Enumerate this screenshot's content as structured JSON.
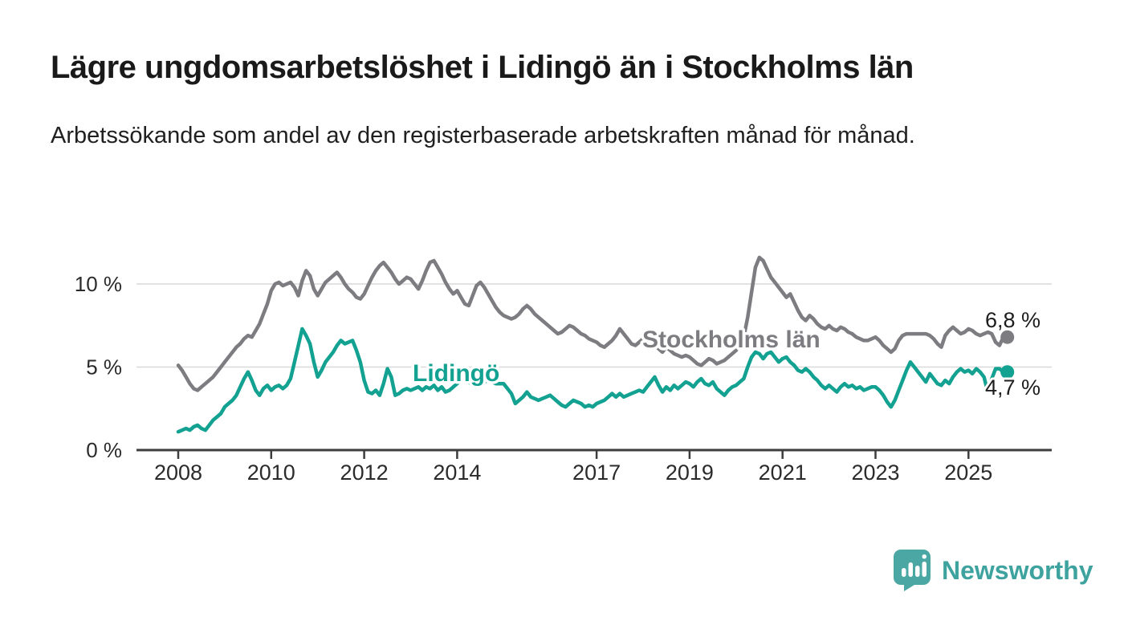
{
  "header": {
    "title": "Lägre ungdomsarbetslöshet i Lidingö än i Stockholms län",
    "subtitle": "Arbetssökande som andel av den registerbaserade arbetskraften månad för månad."
  },
  "chart_data": {
    "type": "line",
    "title": "Lägre ungdomsarbetslöshet i Lidingö än i Stockholms län",
    "subtitle": "Arbetssökande som andel av den registerbaserade arbetskraften månad för månad.",
    "unit": "%",
    "frequency": "monthly",
    "x_start": "2008-01",
    "x_end": "2025-10",
    "grid": "horizontal",
    "legend_position": "inline-labels",
    "x_axis": {
      "start_year": 2008,
      "ticks": [
        {
          "year": 2008,
          "label": "2008"
        },
        {
          "year": 2010,
          "label": "2010"
        },
        {
          "year": 2012,
          "label": "2012"
        },
        {
          "year": 2014,
          "label": "2014"
        },
        {
          "year": 2017,
          "label": "2017"
        },
        {
          "year": 2019,
          "label": "2019"
        },
        {
          "year": 2021,
          "label": "2021"
        },
        {
          "year": 2023,
          "label": "2023"
        },
        {
          "year": 2025,
          "label": "2025"
        }
      ]
    },
    "y_axis": {
      "range": [
        0,
        12.5
      ],
      "ticks": [
        {
          "value": 0,
          "label": "0 %"
        },
        {
          "value": 5,
          "label": "5 %"
        },
        {
          "value": 10,
          "label": "10 %"
        }
      ]
    },
    "series": [
      {
        "name": "Stockholms län",
        "color": "#7c7c81",
        "end_label": "6,8 %",
        "end_value": 6.8,
        "values": [
          5.1,
          4.8,
          4.4,
          4.0,
          3.7,
          3.6,
          3.8,
          4.0,
          4.2,
          4.4,
          4.7,
          5.0,
          5.3,
          5.6,
          5.9,
          6.2,
          6.4,
          6.7,
          6.9,
          6.8,
          7.2,
          7.6,
          8.2,
          8.8,
          9.6,
          10.0,
          10.1,
          9.9,
          10.0,
          10.1,
          9.8,
          9.3,
          10.2,
          10.8,
          10.5,
          9.7,
          9.3,
          9.7,
          10.1,
          10.3,
          10.5,
          10.7,
          10.4,
          10.0,
          9.7,
          9.5,
          9.2,
          9.1,
          9.4,
          9.9,
          10.4,
          10.8,
          11.1,
          11.3,
          11.0,
          10.7,
          10.3,
          10.0,
          10.2,
          10.4,
          10.3,
          10.0,
          9.7,
          10.2,
          10.8,
          11.3,
          11.4,
          11.0,
          10.6,
          10.1,
          9.7,
          9.4,
          9.6,
          9.2,
          8.8,
          8.7,
          9.3,
          9.9,
          10.1,
          9.8,
          9.4,
          9.0,
          8.6,
          8.3,
          8.1,
          8.0,
          7.9,
          8.0,
          8.2,
          8.5,
          8.7,
          8.5,
          8.2,
          8.0,
          7.8,
          7.6,
          7.4,
          7.2,
          7.0,
          7.1,
          7.3,
          7.5,
          7.4,
          7.2,
          7.0,
          6.9,
          6.7,
          6.6,
          6.5,
          6.3,
          6.2,
          6.4,
          6.6,
          6.9,
          7.3,
          7.0,
          6.7,
          6.4,
          6.3,
          6.5,
          6.7,
          7.0,
          6.7,
          6.4,
          6.1,
          5.9,
          6.2,
          6.0,
          5.8,
          5.7,
          5.6,
          5.7,
          5.6,
          5.4,
          5.2,
          5.1,
          5.3,
          5.5,
          5.4,
          5.2,
          5.3,
          5.4,
          5.6,
          5.8,
          6.0,
          6.4,
          6.8,
          8.0,
          9.5,
          11.0,
          11.6,
          11.4,
          10.9,
          10.4,
          10.1,
          9.8,
          9.5,
          9.2,
          9.4,
          8.9,
          8.4,
          8.0,
          7.8,
          8.1,
          7.9,
          7.6,
          7.4,
          7.3,
          7.5,
          7.3,
          7.2,
          7.4,
          7.3,
          7.1,
          7.0,
          6.8,
          6.7,
          6.6,
          6.6,
          6.7,
          6.8,
          6.6,
          6.3,
          6.1,
          5.9,
          6.1,
          6.6,
          6.9,
          7.0,
          7.0,
          7.0,
          7.0,
          7.0,
          7.0,
          6.9,
          6.7,
          6.4,
          6.2,
          6.9,
          7.2,
          7.4,
          7.2,
          7.0,
          7.1,
          7.3,
          7.2,
          7.0,
          6.9,
          7.0,
          7.1,
          7.0,
          6.5,
          6.3,
          6.8
        ]
      },
      {
        "name": "Lidingö",
        "color": "#13a191",
        "end_label": "4,7 %",
        "end_value": 4.7,
        "values": [
          1.1,
          1.2,
          1.3,
          1.2,
          1.4,
          1.5,
          1.3,
          1.2,
          1.5,
          1.8,
          2.0,
          2.2,
          2.6,
          2.8,
          3.0,
          3.3,
          3.8,
          4.3,
          4.7,
          4.2,
          3.6,
          3.3,
          3.7,
          3.9,
          3.6,
          3.8,
          3.9,
          3.7,
          3.9,
          4.3,
          5.3,
          6.3,
          7.3,
          6.9,
          6.4,
          5.3,
          4.4,
          4.8,
          5.3,
          5.6,
          5.9,
          6.3,
          6.6,
          6.4,
          6.5,
          6.6,
          6.0,
          5.3,
          4.2,
          3.5,
          3.4,
          3.6,
          3.3,
          4.0,
          4.9,
          4.4,
          3.3,
          3.4,
          3.6,
          3.7,
          3.6,
          3.7,
          3.8,
          3.6,
          3.8,
          3.7,
          3.9,
          3.6,
          3.8,
          3.5,
          3.6,
          3.8,
          4.0,
          4.2,
          4.4,
          4.1,
          3.9,
          3.8,
          4.0,
          4.1,
          4.2,
          4.1,
          4.0,
          4.0,
          4.0,
          3.7,
          3.4,
          2.8,
          3.0,
          3.2,
          3.5,
          3.2,
          3.1,
          3.0,
          3.1,
          3.2,
          3.3,
          3.1,
          2.9,
          2.7,
          2.6,
          2.8,
          3.0,
          2.9,
          2.8,
          2.6,
          2.7,
          2.6,
          2.8,
          2.9,
          3.0,
          3.2,
          3.4,
          3.2,
          3.4,
          3.2,
          3.3,
          3.4,
          3.5,
          3.6,
          3.5,
          3.8,
          4.1,
          4.4,
          3.9,
          3.5,
          3.8,
          3.6,
          3.9,
          3.7,
          3.9,
          4.1,
          4.0,
          3.8,
          4.1,
          4.3,
          4.0,
          3.9,
          4.1,
          3.7,
          3.5,
          3.3,
          3.6,
          3.8,
          3.9,
          4.1,
          4.3,
          5.0,
          5.6,
          5.9,
          5.8,
          5.5,
          5.8,
          5.9,
          5.6,
          5.3,
          5.5,
          5.6,
          5.3,
          5.1,
          4.8,
          4.7,
          4.9,
          4.7,
          4.4,
          4.2,
          3.9,
          3.7,
          3.9,
          3.7,
          3.5,
          3.8,
          4.0,
          3.8,
          3.9,
          3.7,
          3.8,
          3.6,
          3.7,
          3.8,
          3.8,
          3.6,
          3.3,
          2.9,
          2.6,
          3.0,
          3.6,
          4.2,
          4.8,
          5.3,
          5.0,
          4.7,
          4.4,
          4.1,
          4.6,
          4.3,
          4.0,
          3.9,
          4.2,
          4.0,
          4.4,
          4.7,
          4.9,
          4.7,
          4.8,
          4.6,
          4.9,
          4.7,
          4.4,
          3.5,
          4.3,
          4.9,
          4.9,
          4.7
        ]
      }
    ]
  },
  "footer": {
    "brand": "Newsworthy",
    "brand_color": "#3ea39e",
    "logo_color": "#4ba7a3"
  }
}
